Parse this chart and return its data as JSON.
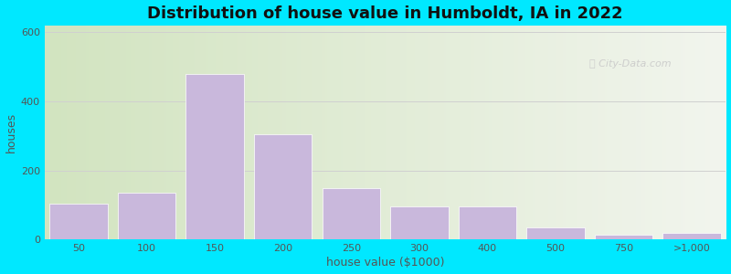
{
  "title": "Distribution of house value in Humboldt, IA in 2022",
  "xlabel": "house value ($1000)",
  "ylabel": "houses",
  "tick_labels": [
    "50",
    "100",
    "150",
    "200",
    "250",
    "300",
    "400",
    "500",
    "750",
    ">1,000"
  ],
  "bar_heights": [
    105,
    135,
    480,
    305,
    150,
    95,
    95,
    35,
    15,
    20
  ],
  "bar_color": "#c9b8dc",
  "bar_edge_color": "#ffffff",
  "ylim": [
    0,
    620
  ],
  "yticks": [
    0,
    200,
    400,
    600
  ],
  "background_outer": "#00e8ff",
  "grid_color": "#d0d0d0",
  "title_fontsize": 13,
  "axis_label_fontsize": 9,
  "tick_fontsize": 8,
  "watermark_text": "City-Data.com",
  "watermark_color": "#c8c8c8",
  "fig_width": 8.0,
  "fig_height": 3.0,
  "dpi": 100
}
